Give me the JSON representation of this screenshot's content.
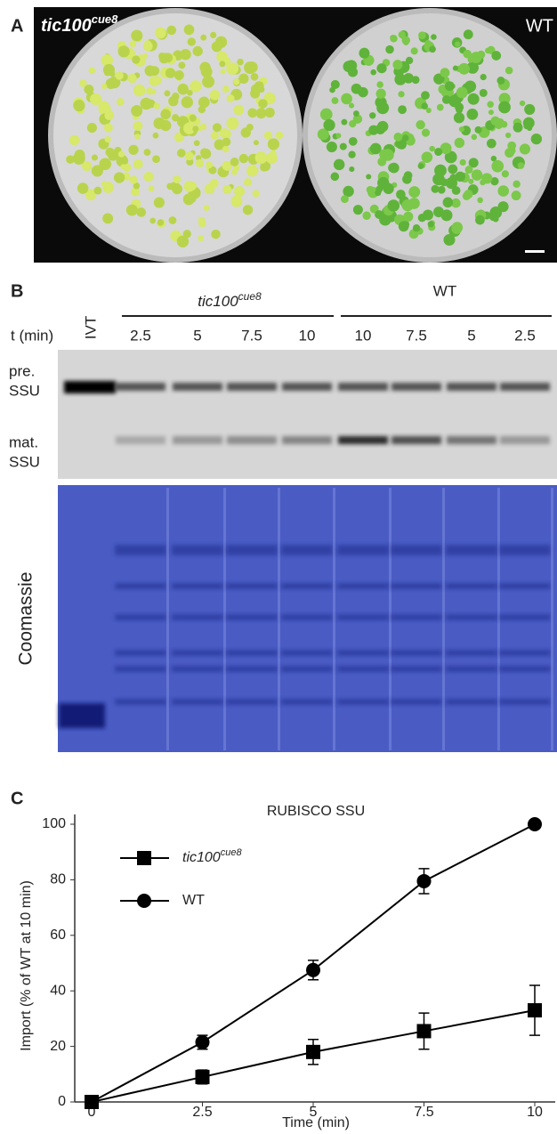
{
  "panel_a": {
    "label": "A",
    "left_plate": {
      "base": "tic100",
      "sup": "cue8"
    },
    "right_plate": "WT"
  },
  "panel_b": {
    "label": "B",
    "group_mutant": {
      "base": "tic100",
      "sup": "cue8"
    },
    "group_wt": "WT",
    "time_label": "t (min)",
    "ivt": "IVT",
    "times": [
      "2.5",
      "5",
      "7.5",
      "10",
      "10",
      "7.5",
      "5",
      "2.5"
    ],
    "band_pre": [
      "pre.",
      "SSU"
    ],
    "band_mat": [
      "mat.",
      "SSU"
    ],
    "stain": "Coomassie"
  },
  "panel_c_label": "C",
  "chart_data": {
    "type": "line",
    "title": "RUBISCO  SSU",
    "x_label": "Time  (min)",
    "y_label": "Import (% of WT at 10 min)",
    "x": [
      0,
      2.5,
      5,
      7.5,
      10
    ],
    "series": [
      {
        "name": "tic100",
        "name_sup": "cue8",
        "marker": "square",
        "color": "#000000",
        "values": [
          0,
          9,
          18,
          25.5,
          33
        ],
        "errors": [
          0,
          2.5,
          4.5,
          6.5,
          9
        ]
      },
      {
        "name": "WT",
        "marker": "circle",
        "color": "#000000",
        "values": [
          0,
          21.5,
          47.5,
          79.5,
          100
        ],
        "errors": [
          0,
          2.5,
          3.5,
          4.5,
          0
        ]
      }
    ],
    "xlim": [
      0,
      10
    ],
    "xticks": [
      0,
      2.5,
      5,
      7.5,
      10
    ],
    "ylim": [
      0,
      100
    ],
    "yticks": [
      0,
      20,
      40,
      60,
      80,
      100
    ]
  }
}
